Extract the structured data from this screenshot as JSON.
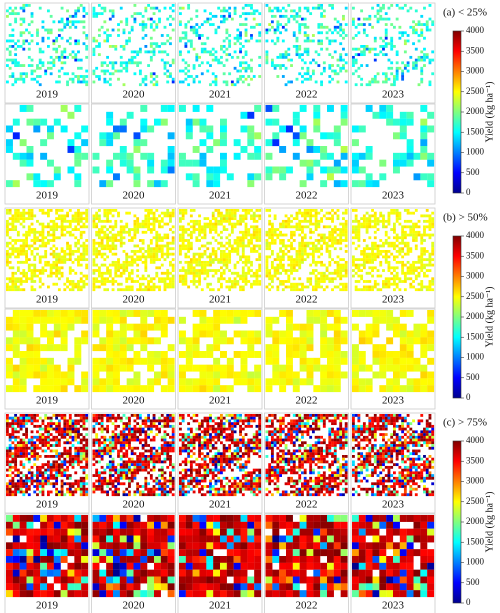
{
  "groups": [
    {
      "title": "(a) < 25%"
    },
    {
      "title": "(b) > 50%"
    },
    {
      "title": "(c) > 75%"
    }
  ],
  "panel_labels": [
    "2019",
    "2020",
    "2021",
    "2022",
    "2023"
  ],
  "colorbar": {
    "label": "Yield (kg ha⁻¹)",
    "range": [
      0,
      4000
    ],
    "ticks": [
      0,
      500,
      1000,
      1500,
      2000,
      2500,
      3000,
      3500,
      4000
    ]
  }
}
